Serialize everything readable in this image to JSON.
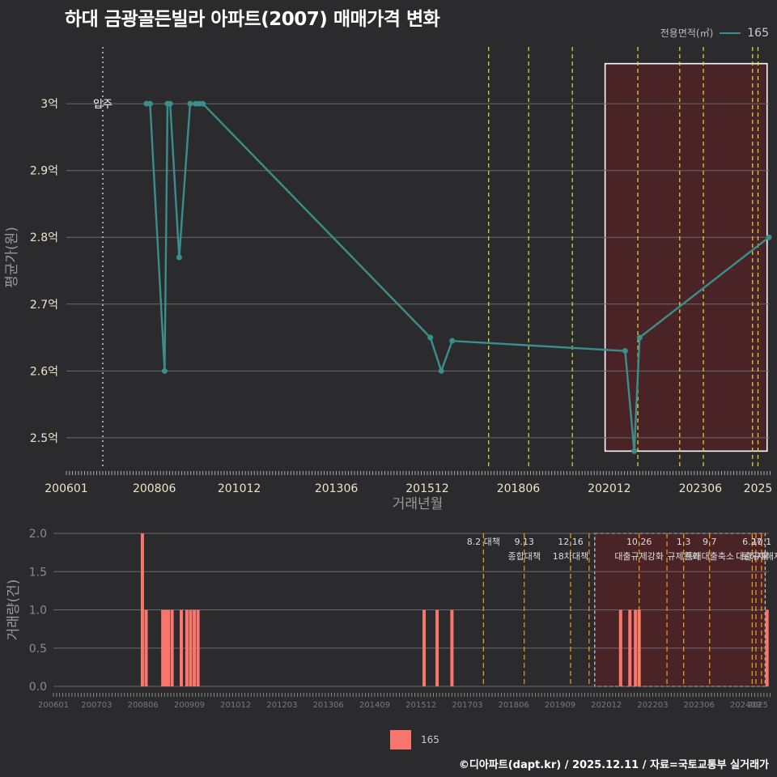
{
  "title": "하대 금광골든빌라 아파트(2007) 매매가격 변화",
  "legend": {
    "title": "전용면적(㎡)",
    "series_label": "165",
    "color": "#3a8f8c"
  },
  "bar_legend": {
    "label": "165",
    "color": "#f8766d"
  },
  "caption": "©디아파트(dapt.kr) / 2025.12.11 / 자료=국토교통부 실거래가",
  "chart_data": [
    {
      "type": "line",
      "title": "하대 금광골든빌라 아파트(2007) 매매가격 변화",
      "xlabel": "거래년월",
      "ylabel": "평균가(원)",
      "xlim": [
        2006.0,
        2025.3
      ],
      "ylim": [
        2.455,
        3.085
      ],
      "x_ticks": [
        {
          "x": 2006.0,
          "label": "200601"
        },
        {
          "x": 2008.4167,
          "label": "200806"
        },
        {
          "x": 2010.75,
          "label": "201012"
        },
        {
          "x": 2013.4167,
          "label": "201306"
        },
        {
          "x": 2015.9167,
          "label": "201512"
        },
        {
          "x": 2018.4167,
          "label": "201806"
        },
        {
          "x": 2020.9167,
          "label": "202012"
        },
        {
          "x": 2023.4167,
          "label": "202306"
        },
        {
          "x": 2025.0,
          "label": "2025"
        }
      ],
      "y_ticks": [
        {
          "y": 2.5,
          "label": "2.5억"
        },
        {
          "y": 2.6,
          "label": "2.6억"
        },
        {
          "y": 2.7,
          "label": "2.7억"
        },
        {
          "y": 2.8,
          "label": "2.8억"
        },
        {
          "y": 2.9,
          "label": "2.9억"
        },
        {
          "y": 3.0,
          "label": "3억"
        }
      ],
      "series": [
        {
          "name": "165",
          "x": [
            2008.2,
            2008.3,
            2008.7,
            2008.78,
            2008.85,
            2009.1,
            2009.4,
            2009.55,
            2009.65,
            2009.75,
            2016.0,
            2016.3,
            2016.6,
            2021.35,
            2021.6,
            2021.75,
            2025.3
          ],
          "y": [
            3.0,
            3.0,
            2.6,
            3.0,
            3.0,
            2.77,
            3.0,
            3.0,
            3.0,
            3.0,
            2.65,
            2.6,
            2.645,
            2.63,
            2.48,
            2.65,
            2.8
          ]
        }
      ],
      "move_in": {
        "x": 2007.0,
        "label": "입주"
      },
      "highlight_range": [
        2020.8,
        2025.25
      ],
      "policy_lines_x": [
        2017.6,
        2018.7,
        2019.9,
        2021.7,
        2022.85,
        2023.5,
        2024.85,
        2025.0
      ]
    },
    {
      "type": "bar",
      "xlabel": "",
      "ylabel": "거래량(건)",
      "xlim": [
        2006.0,
        2025.3
      ],
      "ylim": [
        0,
        2.0
      ],
      "x_ticks": [
        {
          "x": 2006.0,
          "label": "200601"
        },
        {
          "x": 2007.1667,
          "label": "200703"
        },
        {
          "x": 2008.4167,
          "label": "200806"
        },
        {
          "x": 2009.6667,
          "label": "200909"
        },
        {
          "x": 2010.9167,
          "label": "201012"
        },
        {
          "x": 2012.1667,
          "label": "201203"
        },
        {
          "x": 2013.4167,
          "label": "201306"
        },
        {
          "x": 2014.6667,
          "label": "201409"
        },
        {
          "x": 2015.9167,
          "label": "201512"
        },
        {
          "x": 2017.1667,
          "label": "201703"
        },
        {
          "x": 2018.4167,
          "label": "201806"
        },
        {
          "x": 2019.6667,
          "label": "201909"
        },
        {
          "x": 2020.9167,
          "label": "202012"
        },
        {
          "x": 2022.1667,
          "label": "202203"
        },
        {
          "x": 2023.4167,
          "label": "202306"
        },
        {
          "x": 2024.6667,
          "label": "202409"
        },
        {
          "x": 2025.0,
          "label": "2025"
        }
      ],
      "y_ticks": [
        {
          "y": 0,
          "label": "0.0"
        },
        {
          "y": 0.5,
          "label": "0.5"
        },
        {
          "y": 1.0,
          "label": "1.0"
        },
        {
          "y": 1.5,
          "label": "1.5"
        },
        {
          "y": 2.0,
          "label": "2.0"
        }
      ],
      "bars": {
        "x": [
          2008.4,
          2008.5,
          2008.95,
          2009.02,
          2009.1,
          2009.2,
          2009.45,
          2009.6,
          2009.7,
          2009.8,
          2009.9,
          2016.0,
          2016.35,
          2016.75,
          2021.3,
          2021.55,
          2021.7,
          2021.8,
          2025.25
        ],
        "values": [
          2,
          1,
          1,
          1,
          1,
          1,
          1,
          1,
          1,
          1,
          1,
          1,
          1,
          1,
          1,
          1,
          1,
          1,
          1
        ]
      },
      "highlight_range": [
        2020.6,
        2025.2
      ],
      "policy_lines": [
        {
          "x": 2017.6,
          "date": "8.2 대책",
          "label": ""
        },
        {
          "x": 2018.7,
          "date": "9.13",
          "label": "종합대책"
        },
        {
          "x": 2019.95,
          "date": "12.16",
          "label": "18차대책"
        },
        {
          "x": 2020.45,
          "date": "",
          "label": ""
        },
        {
          "x": 2021.8,
          "date": "10.26",
          "label": "대출규제강화"
        },
        {
          "x": 2022.55,
          "date": "",
          "label": ""
        },
        {
          "x": 2023.0,
          "date": "1.3",
          "label": "규제완화"
        },
        {
          "x": 2023.7,
          "date": "9.7",
          "label": "특례대출축소"
        },
        {
          "x": 2024.85,
          "date": "6.27",
          "label": "대출규제"
        },
        {
          "x": 2024.95,
          "date": "",
          "label": ""
        },
        {
          "x": 2025.1,
          "date": "10.1",
          "label": "토허제해제"
        }
      ]
    }
  ]
}
